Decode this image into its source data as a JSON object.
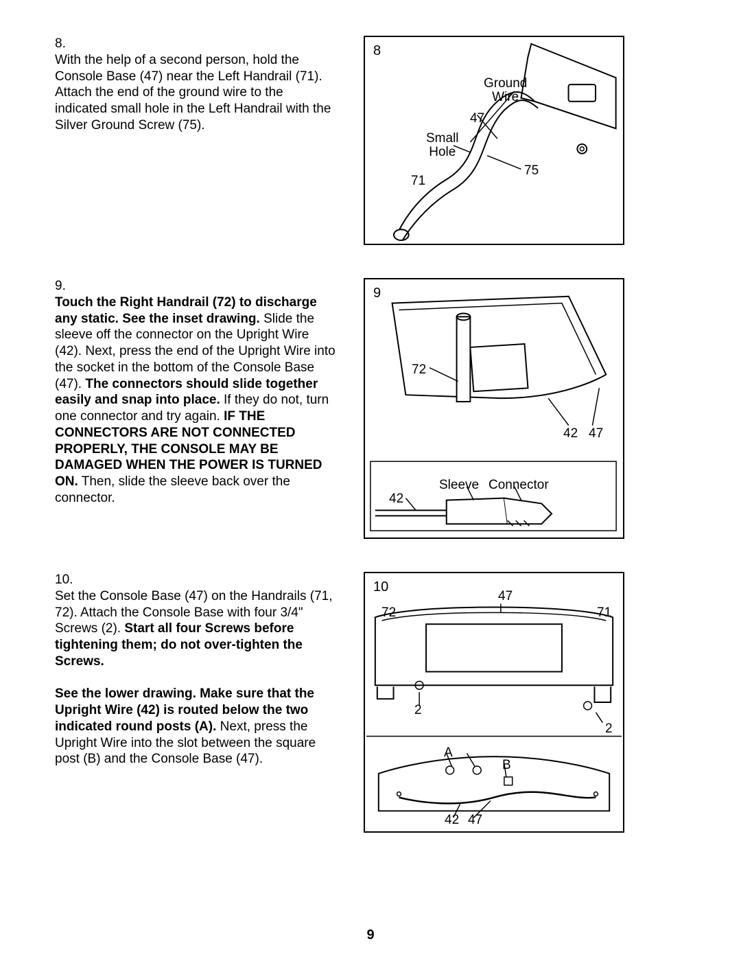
{
  "page_number": "9",
  "steps": [
    {
      "num": "8.",
      "segments": [
        {
          "bold": false,
          "text": "With the help of a second person, hold the Console Base (47) near the Left Handrail (71). Attach the end of the ground wire to the indicated small hole in the Left Handrail with the Silver Ground Screw (75)."
        }
      ],
      "figure": {
        "num": "8",
        "labels": {
          "ground_wire": "Ground\nWire",
          "n47": "47",
          "small_hole": "Small\nHole",
          "n71": "71",
          "n75": "75"
        }
      }
    },
    {
      "num": "9.",
      "segments": [
        {
          "bold": true,
          "text": "Touch the Right Handrail (72) to discharge any static. See the inset drawing."
        },
        {
          "bold": false,
          "text": " Slide the sleeve off the connector on the Upright Wire (42). Next, press the end of the Upright Wire into the socket in the bottom of the Console Base (47). "
        },
        {
          "bold": true,
          "text": "The connectors should slide together easily and snap into place."
        },
        {
          "bold": false,
          "text": " If they do not, turn one connector and try again. "
        },
        {
          "bold": true,
          "text": "IF THE CONNECTORS ARE NOT CONNECTED PROPERLY, THE CONSOLE MAY BE DAMAGED WHEN THE POWER IS TURNED ON."
        },
        {
          "bold": false,
          "text": " Then, slide the sleeve back over the connector."
        }
      ],
      "figure": {
        "num": "9",
        "labels": {
          "n72": "72",
          "n42a": "42",
          "n47": "47",
          "sleeve": "Sleeve",
          "connector": "Connector",
          "n42b": "42"
        }
      }
    },
    {
      "num": "10.",
      "segments": [
        {
          "bold": false,
          "text": "Set the Console Base (47) on the Handrails (71, 72). Attach the Console Base with four 3/4\" Screws (2). "
        },
        {
          "bold": true,
          "text": "Start all four Screws before tightening them; do not over-tighten the Screws."
        },
        {
          "bold": false,
          "text": "\n\n"
        },
        {
          "bold": true,
          "text": "See the lower drawing. Make sure that the Upright Wire (42) is routed below the two indicated round posts (A)."
        },
        {
          "bold": false,
          "text": " Next, press the Upright Wire into the slot between the square post (B) and the Console Base (47)."
        }
      ],
      "figure": {
        "num": "10",
        "labels": {
          "n47a": "47",
          "n72": "72",
          "n71": "71",
          "n2a": "2",
          "n2b": "2",
          "A": "A",
          "B": "B",
          "n42": "42",
          "n47b": "47"
        }
      }
    }
  ]
}
